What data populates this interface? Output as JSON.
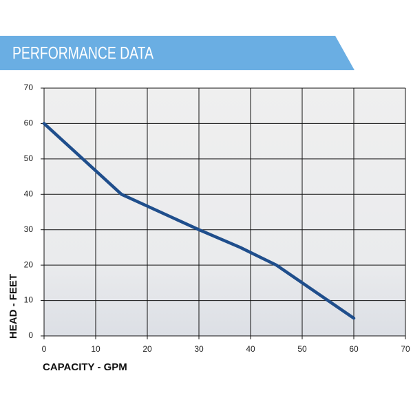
{
  "chart_data": {
    "type": "line",
    "title": "PERFORMANCE DATA",
    "x_label": "CAPACITY - GPM",
    "y_label": "HEAD - FEET",
    "x": [
      0,
      15,
      30,
      38,
      45,
      60
    ],
    "values": [
      60,
      40,
      30,
      25,
      20,
      5
    ],
    "color": "#1f4e8c",
    "xlim": [
      0,
      70
    ],
    "ylim": [
      0,
      70
    ],
    "xticks": [
      0,
      10,
      20,
      30,
      40,
      50,
      60,
      70
    ],
    "yticks": [
      0,
      10,
      20,
      30,
      40,
      50,
      60,
      70
    ],
    "grid": true
  }
}
